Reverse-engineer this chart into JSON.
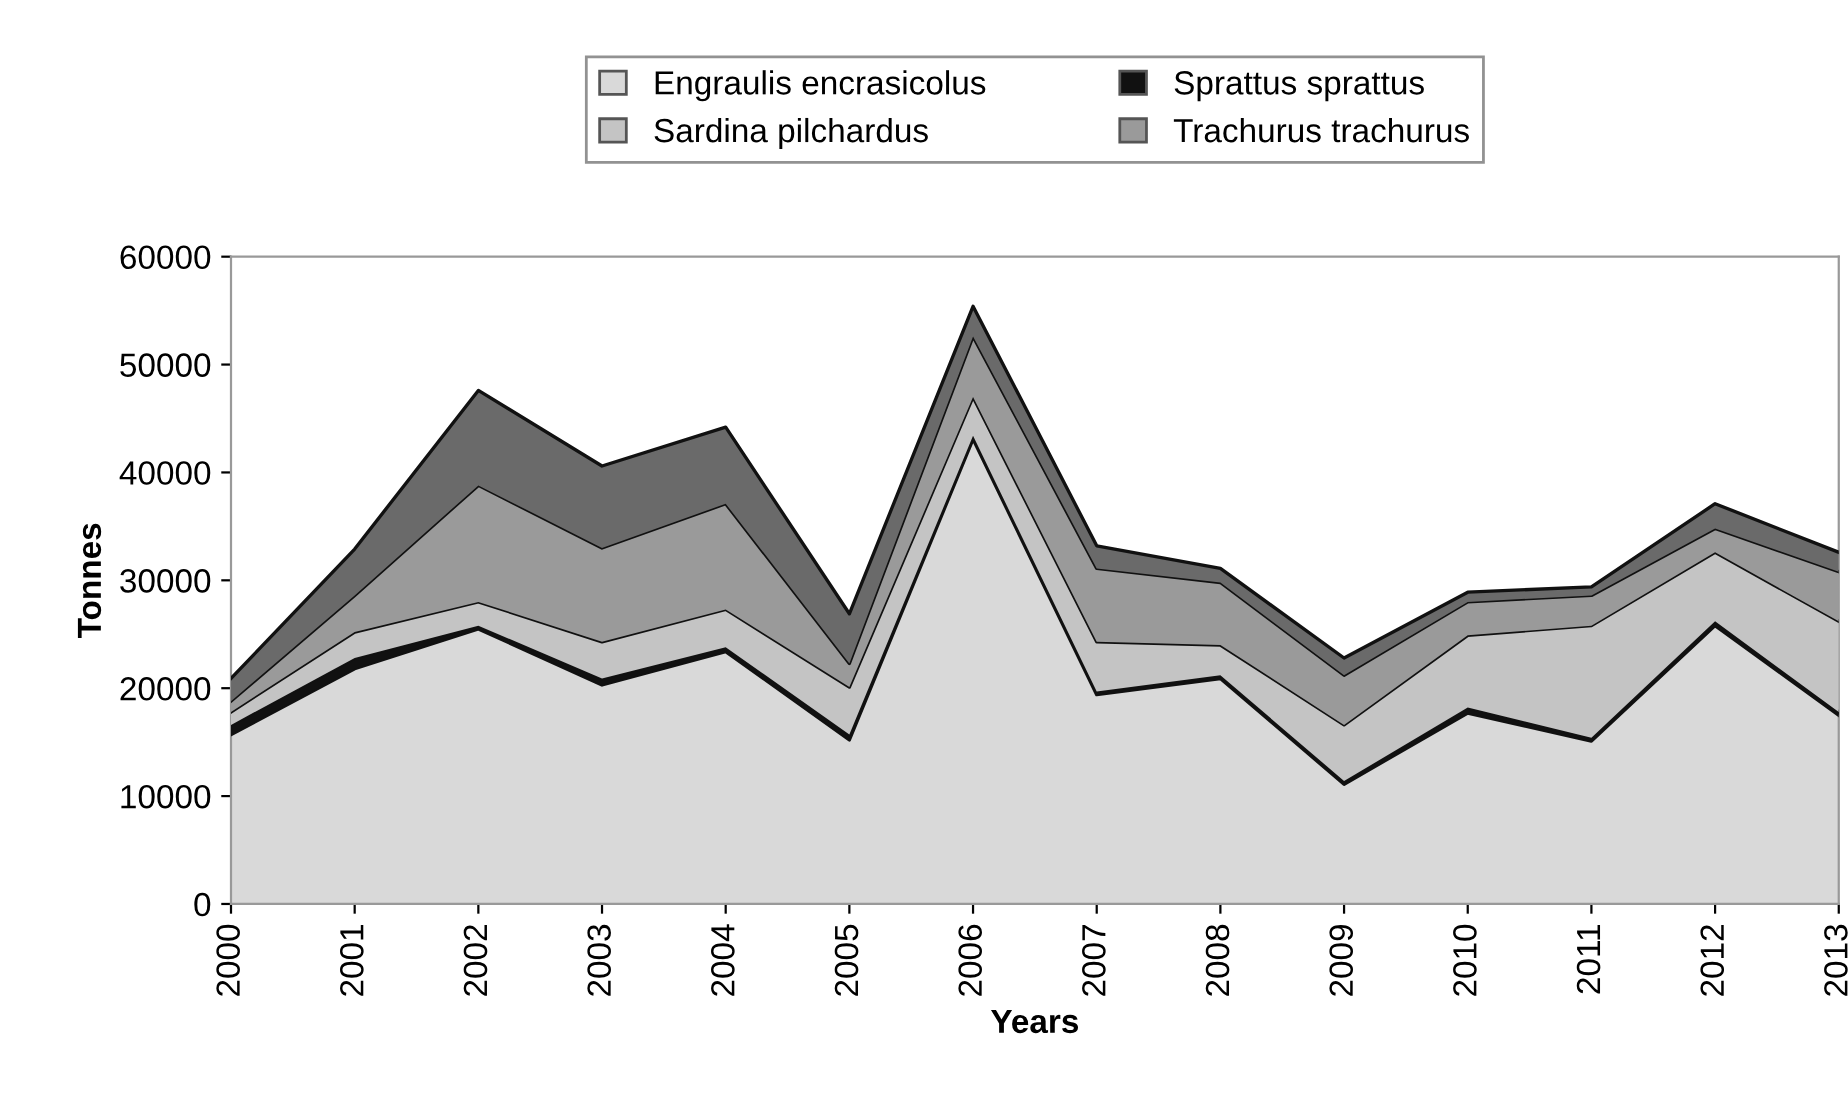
{
  "chart_data": {
    "type": "area",
    "stacked": true,
    "xlabel": "Years",
    "ylabel": "Tonnes",
    "categories": [
      "2000",
      "2001",
      "2002",
      "2003",
      "2004",
      "2005",
      "2006",
      "2007",
      "2008",
      "2009",
      "2010",
      "2011",
      "2012",
      "2013"
    ],
    "series": [
      {
        "name": "Engraulis encrasicolus",
        "color": "#d9d9d9",
        "values": [
          15700,
          21800,
          25500,
          20300,
          23400,
          15200,
          43100,
          19400,
          20900,
          11100,
          17700,
          15100,
          25800,
          17500
        ]
      },
      {
        "name": "Sprattus sprattus",
        "color": "#111111",
        "values": [
          900,
          1000,
          300,
          600,
          400,
          500,
          300,
          300,
          300,
          300,
          500,
          300,
          400,
          300
        ]
      },
      {
        "name": "Sardina pilchardus",
        "color": "#c4c4c4",
        "values": [
          1200,
          2400,
          2200,
          3400,
          3500,
          4400,
          3600,
          4600,
          2800,
          5200,
          6700,
          10400,
          6400,
          8400
        ]
      },
      {
        "name": "Trachurus trachurus",
        "color": "#9a9a9a",
        "values": [
          1000,
          3400,
          10800,
          8700,
          9800,
          2200,
          5600,
          6800,
          5800,
          4600,
          3100,
          2800,
          2200,
          4600
        ]
      },
      {
        "color": "#6a6a6a",
        "values": [
          2100,
          4300,
          8800,
          7600,
          7100,
          4600,
          2800,
          2100,
          1300,
          1600,
          900,
          800,
          2300,
          1800
        ]
      }
    ],
    "ylim": [
      0,
      60000
    ],
    "yticks": [
      0,
      10000,
      20000,
      30000,
      40000,
      50000,
      60000
    ],
    "grid": false,
    "legend": "top"
  }
}
